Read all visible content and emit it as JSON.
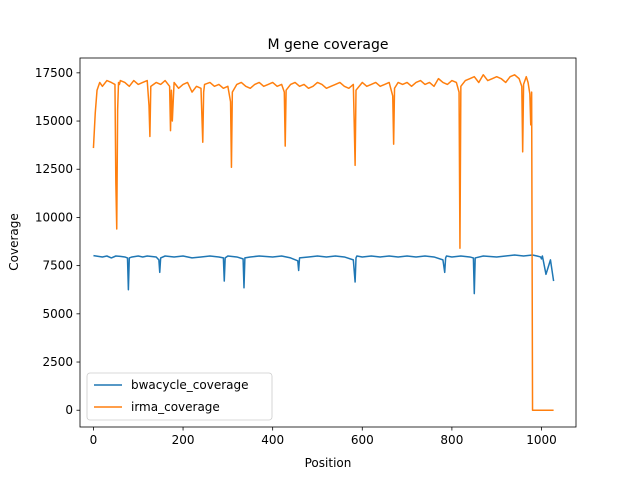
{
  "chart_data": {
    "type": "line",
    "title": "M gene coverage",
    "xlabel": "Position",
    "ylabel": "Coverage",
    "xlim": [
      -30,
      1077
    ],
    "ylim": [
      -870,
      18270
    ],
    "xticks": [
      0,
      200,
      400,
      600,
      800,
      1000
    ],
    "yticks": [
      0,
      2500,
      5000,
      7500,
      10000,
      12500,
      15000,
      17500
    ],
    "xtick_labels": [
      "0",
      "200",
      "400",
      "600",
      "800",
      "1000"
    ],
    "ytick_labels": [
      "0",
      "2500",
      "5000",
      "7500",
      "10000",
      "12500",
      "15000",
      "17500"
    ],
    "legend_position": "lower-left",
    "grid": false,
    "series": [
      {
        "name": "bwacycle_coverage",
        "color": "#1f77b4",
        "x": [
          0,
          20,
          30,
          40,
          50,
          60,
          70,
          76,
          78,
          80,
          86,
          100,
          110,
          120,
          140,
          146,
          148,
          150,
          160,
          180,
          200,
          220,
          240,
          260,
          280,
          290,
          292,
          294,
          300,
          320,
          334,
          336,
          338,
          350,
          370,
          400,
          420,
          440,
          456,
          458,
          460,
          480,
          500,
          520,
          540,
          560,
          580,
          584,
          586,
          588,
          600,
          620,
          640,
          660,
          680,
          700,
          720,
          740,
          760,
          780,
          784,
          786,
          788,
          800,
          820,
          840,
          848,
          850,
          852,
          870,
          900,
          920,
          940,
          960,
          980,
          990,
          998,
          1000,
          1002,
          1010,
          1020,
          1027
        ],
        "values": [
          8020,
          7950,
          8000,
          7900,
          8000,
          7980,
          7950,
          7900,
          6250,
          7900,
          7950,
          8000,
          7950,
          8000,
          7950,
          7800,
          7150,
          7900,
          8000,
          7950,
          8000,
          7900,
          7950,
          8000,
          7950,
          7900,
          6700,
          7900,
          8000,
          7950,
          7850,
          6350,
          7900,
          7950,
          8000,
          7950,
          8000,
          7900,
          7750,
          7250,
          7900,
          7950,
          8000,
          7950,
          8000,
          7950,
          7800,
          6650,
          7900,
          8000,
          7950,
          8000,
          7950,
          8000,
          7950,
          8000,
          7950,
          8000,
          7950,
          7800,
          7150,
          7900,
          8000,
          7950,
          8000,
          7950,
          7900,
          6050,
          7900,
          8000,
          7950,
          8000,
          8050,
          8000,
          8050,
          8000,
          7950,
          7850,
          8000,
          7050,
          7800,
          6700
        ]
      },
      {
        "name": "irma_coverage",
        "color": "#ff7f0e",
        "x": [
          0,
          4,
          8,
          14,
          20,
          30,
          40,
          48,
          50,
          52,
          54,
          56,
          58,
          60,
          70,
          80,
          90,
          100,
          110,
          120,
          124,
          126,
          128,
          140,
          150,
          160,
          170,
          172,
          174,
          176,
          180,
          190,
          200,
          210,
          220,
          230,
          240,
          244,
          246,
          248,
          260,
          270,
          280,
          290,
          300,
          306,
          308,
          310,
          320,
          330,
          340,
          350,
          360,
          370,
          380,
          390,
          400,
          410,
          420,
          426,
          428,
          430,
          440,
          450,
          460,
          470,
          480,
          490,
          500,
          510,
          520,
          530,
          540,
          550,
          560,
          570,
          580,
          582,
          584,
          586,
          600,
          610,
          620,
          630,
          640,
          650,
          660,
          668,
          670,
          672,
          680,
          690,
          700,
          710,
          720,
          730,
          740,
          750,
          760,
          770,
          780,
          790,
          800,
          810,
          816,
          818,
          820,
          830,
          840,
          850,
          860,
          870,
          880,
          890,
          900,
          910,
          920,
          930,
          940,
          950,
          956,
          958,
          960,
          966,
          970,
          974,
          976,
          978,
          980,
          990,
          1000,
          1010,
          1020,
          1027
        ],
        "values": [
          13600,
          15400,
          16600,
          17000,
          16800,
          17100,
          17000,
          16900,
          11800,
          9400,
          15600,
          17000,
          16900,
          17100,
          17000,
          16800,
          17100,
          16900,
          17000,
          17100,
          15800,
          14200,
          16800,
          17000,
          16900,
          17100,
          16800,
          14500,
          16600,
          15000,
          17000,
          16700,
          16900,
          17000,
          16500,
          16800,
          16700,
          13900,
          16500,
          16900,
          17000,
          16800,
          16900,
          16700,
          16800,
          16000,
          12600,
          16500,
          16900,
          17000,
          16800,
          16700,
          16900,
          17000,
          16800,
          16900,
          17000,
          16800,
          16900,
          16500,
          13700,
          16600,
          16900,
          17000,
          16800,
          16900,
          16700,
          16800,
          17000,
          16900,
          16700,
          16800,
          16900,
          17000,
          16800,
          16700,
          16900,
          14900,
          12700,
          16600,
          17000,
          16800,
          16900,
          17000,
          16800,
          16900,
          17000,
          16300,
          13800,
          16700,
          17000,
          16900,
          17000,
          16800,
          17000,
          17100,
          16900,
          17000,
          16800,
          17200,
          17000,
          16900,
          17100,
          17000,
          16500,
          8400,
          16800,
          17100,
          17200,
          17300,
          17000,
          17400,
          17100,
          17200,
          17300,
          17200,
          17000,
          17300,
          17400,
          17200,
          16800,
          13400,
          16900,
          17300,
          17000,
          16400,
          14800,
          16500,
          0,
          0,
          0,
          0,
          0,
          0
        ]
      }
    ]
  }
}
